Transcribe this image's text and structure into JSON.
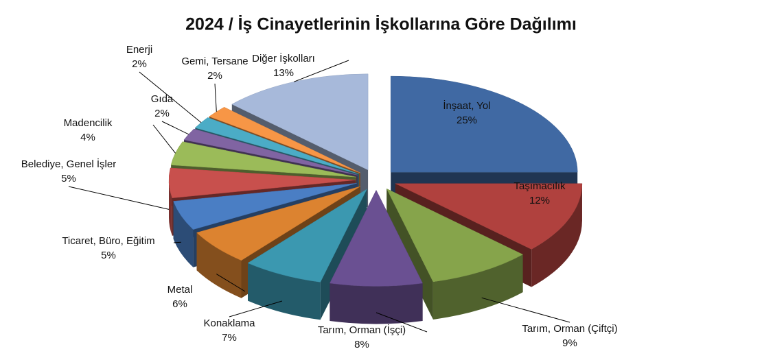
{
  "chart_data": {
    "type": "pie",
    "title": "2024 / İş Cinayetlerinin İşkollarına Göre Dağılımı",
    "categories": [
      "İnşaat, Yol",
      "Taşımacılık",
      "Tarım, Orman (Çiftçi)",
      "Tarım, Orman (İşçi)",
      "Konaklama",
      "Metal",
      "Ticaret, Büro, Eğitim",
      "Belediye, Genel İşler",
      "Madencilik",
      "Gıda",
      "Enerji",
      "Gemi, Tersane",
      "Diğer İşkolları"
    ],
    "values": [
      25,
      12,
      9,
      8,
      7,
      6,
      5,
      5,
      4,
      2,
      2,
      2,
      13
    ],
    "value_labels": [
      "25%",
      "12%",
      "9%",
      "8%",
      "7%",
      "6%",
      "5%",
      "5%",
      "4%",
      "2%",
      "2%",
      "2%",
      "13%"
    ],
    "colors": [
      "#4069a3",
      "#b0413e",
      "#86a44b",
      "#6a5092",
      "#3b98b0",
      "#dc8330",
      "#4a7ec4",
      "#c8504d",
      "#9bbb59",
      "#8064a2",
      "#4bacc6",
      "#f79646",
      "#a7b9da"
    ]
  }
}
